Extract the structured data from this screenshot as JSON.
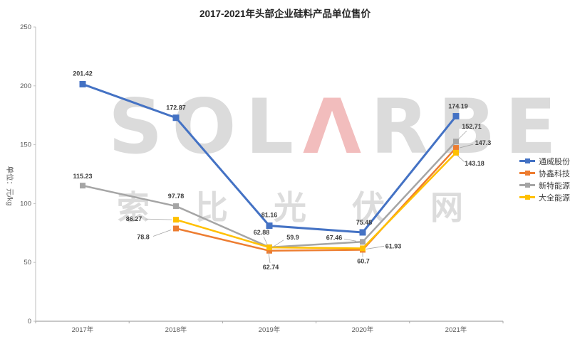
{
  "title": "2017-2021年头部企业硅料产品单位售价",
  "watermark": {
    "logo_left": "SOL",
    "logo_a": "Λ",
    "logo_right": "RBE",
    "cn_text": "索比光伏网"
  },
  "chart_data": {
    "type": "line",
    "title": "2017-2021年头部企业硅料产品单位售价",
    "xlabel": "",
    "ylabel": "单位：元/kg",
    "ylim": [
      0,
      250
    ],
    "y_ticks": [
      0,
      50,
      100,
      150,
      200,
      250
    ],
    "grid": false,
    "legend_position": "right",
    "categories": [
      "2017年",
      "2018年",
      "2019年",
      "2020年",
      "2021年"
    ],
    "series": [
      {
        "name": "通威股份",
        "color": "#4472C4",
        "values": [
          201.42,
          172.87,
          81.16,
          75.48,
          174.19
        ]
      },
      {
        "name": "协鑫科技",
        "color": "#ED7D31",
        "values": [
          null,
          78.8,
          59.9,
          60.7,
          147.3
        ]
      },
      {
        "name": "新特能源",
        "color": "#A5A5A5",
        "values": [
          115.23,
          97.78,
          62.88,
          67.46,
          152.71
        ]
      },
      {
        "name": "大全能源",
        "color": "#FFC000",
        "values": [
          null,
          86.27,
          62.74,
          61.93,
          143.18
        ]
      }
    ]
  }
}
